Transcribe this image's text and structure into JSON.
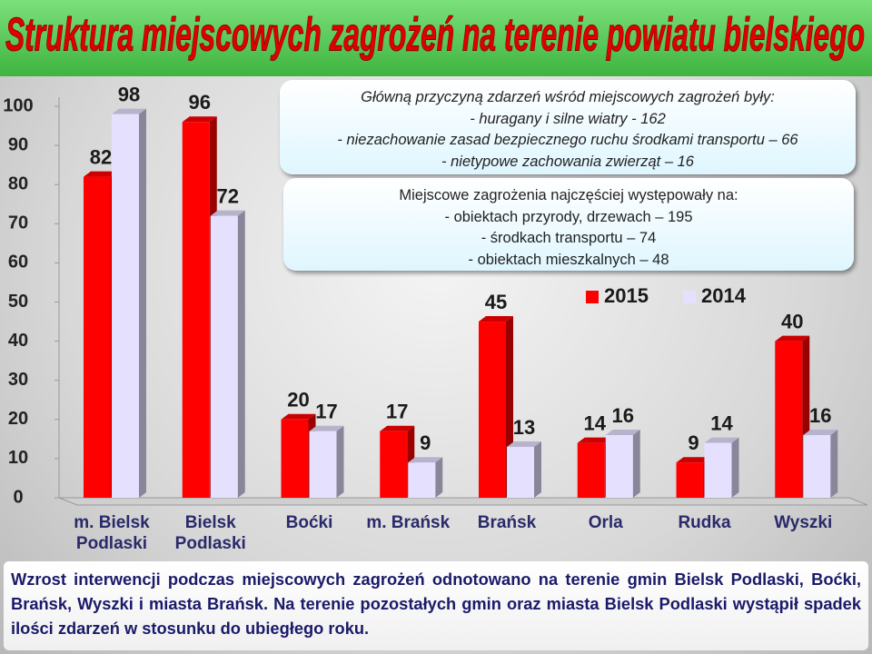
{
  "chart_data": {
    "type": "bar",
    "title": "Struktura miejscowych zagrożeń na terenie powiatu bielskiego",
    "categories": [
      "m. Bielsk Podlaski",
      "Bielsk Podlaski",
      "Boćki",
      "m. Brańsk",
      "Brańsk",
      "Orla",
      "Rudka",
      "Wyszki"
    ],
    "series": [
      {
        "name": "2015",
        "color": "#ff0000",
        "values": [
          82,
          96,
          20,
          17,
          45,
          14,
          9,
          40
        ]
      },
      {
        "name": "2014",
        "color": "#e6e0ff",
        "values": [
          98,
          72,
          17,
          9,
          13,
          16,
          14,
          16
        ]
      }
    ],
    "ylim": [
      0,
      100
    ],
    "yticks": [
      0,
      10,
      20,
      30,
      40,
      50,
      60,
      70,
      80,
      90,
      100
    ],
    "grid": false,
    "legend": "top-right",
    "annotations": [
      {
        "lines": [
          "Główną przyczyną  zdarzeń wśród miejscowych zagrożeń były:",
          "- huragany i silne wiatry - 162",
          "- niezachowanie zasad bezpiecznego ruchu środkami transportu – 66",
          "- nietypowe zachowania zwierząt – 16"
        ]
      },
      {
        "lines": [
          "Miejscowe zagrożenia najczęściej występowały na:",
          "- obiektach przyrody, drzewach – 195",
          "- środkach transportu – 74",
          "- obiektach mieszkalnych – 48"
        ]
      }
    ],
    "footer": "Wzrost interwencji podczas miejscowych zagrożeń odnotowano na terenie gmin Bielsk Podlaski, Boćki, Brańsk, Wyszki i miasta Brańsk. Na terenie pozostałych gmin oraz miasta Bielsk Podlaski wystąpił spadek ilości zdarzeń w stosunku do ubiegłego roku."
  }
}
